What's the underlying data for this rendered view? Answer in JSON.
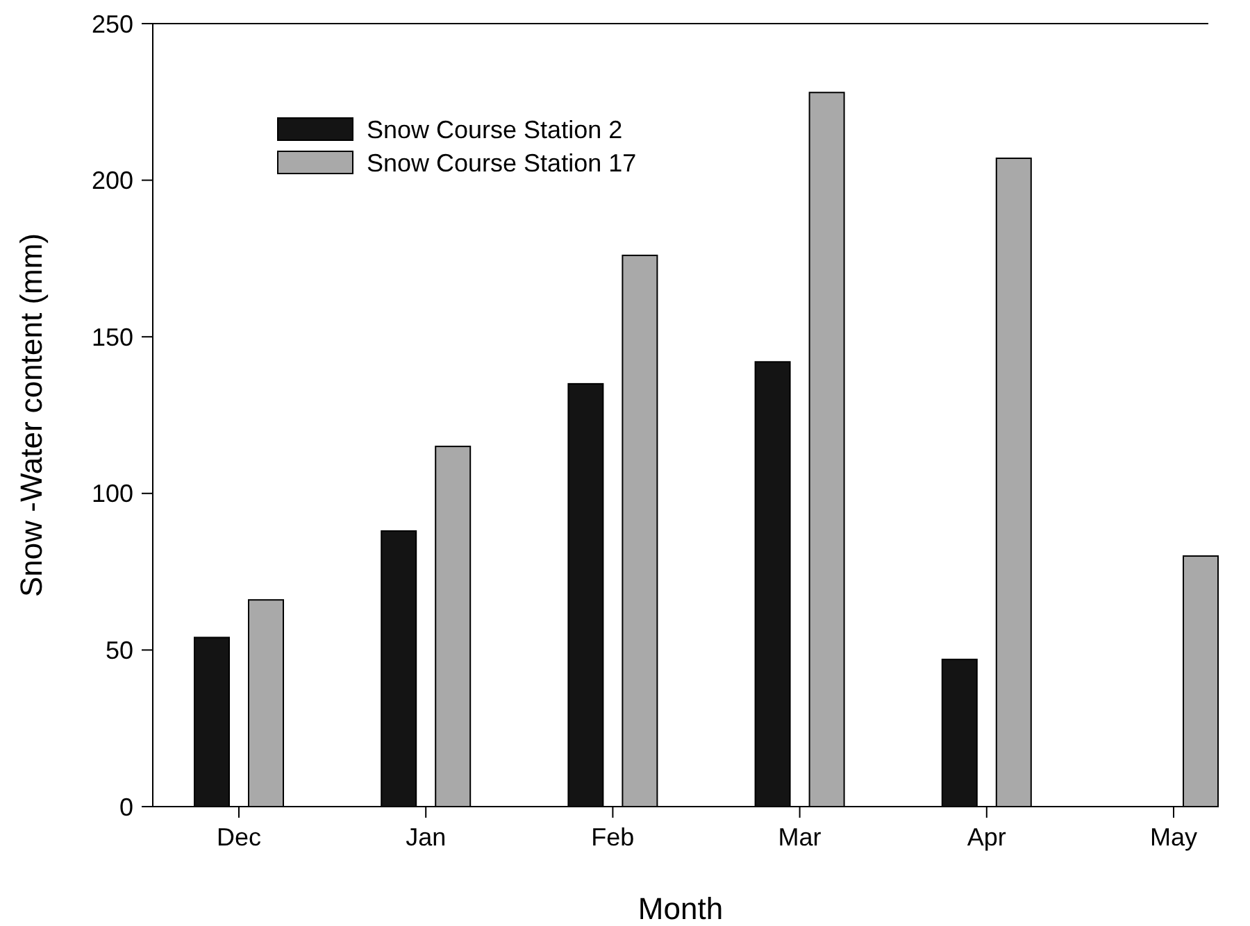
{
  "chart_data": {
    "type": "bar",
    "xlabel": "Month",
    "ylabel": "Snow -Water content (mm)",
    "categories": [
      "Dec",
      "Jan",
      "Feb",
      "Mar",
      "Apr",
      "May"
    ],
    "series": [
      {
        "name": "Snow Course Station 2",
        "color": "#141414",
        "values": [
          54,
          88,
          135,
          142,
          47,
          null
        ]
      },
      {
        "name": "Snow Course Station 17",
        "color": "#a9a9a9",
        "values": [
          66,
          115,
          176,
          228,
          207,
          80
        ]
      }
    ],
    "ylim": [
      0,
      250
    ],
    "yticks": [
      0,
      50,
      100,
      150,
      200,
      250
    ],
    "grid": false,
    "legend": "top left"
  }
}
